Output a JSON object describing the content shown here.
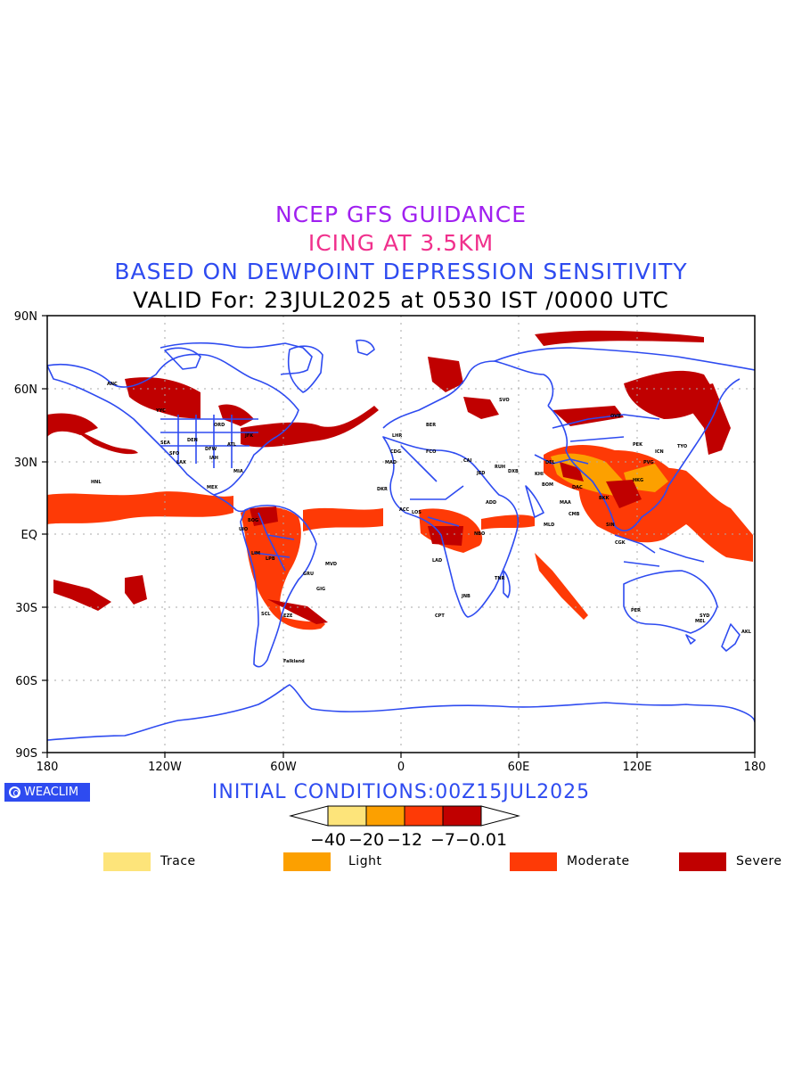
{
  "titles": {
    "line1": "NCEP GFS GUIDANCE",
    "line2": "ICING AT 3.5KM",
    "line3": "BASED ON DEWPOINT DEPRESSION SENSITIVITY",
    "line4": "VALID For: 23JUL2025 at 0530 IST /0000 UTC"
  },
  "axes": {
    "lat_labels": [
      "90N",
      "60N",
      "30N",
      "EQ",
      "30S",
      "60S",
      "90S"
    ],
    "lon_labels": [
      "180",
      "120W",
      "60W",
      "0",
      "60E",
      "120E",
      "180"
    ]
  },
  "brand": {
    "label": "WEACLIM",
    "icon": "weaclim-logo-icon"
  },
  "init_conditions": "INITIAL CONDITIONS:00Z15JUL2025",
  "colorbar": {
    "tick_labels": [
      "−40",
      "−20",
      "−12",
      "−7",
      "−0.01"
    ],
    "colors": [
      "#fde47a",
      "#fca000",
      "#fe3a06",
      "#c00000"
    ]
  },
  "legend": [
    {
      "label": "Trace",
      "color": "#fde47a"
    },
    {
      "label": "Light",
      "color": "#fca000"
    },
    {
      "label": "Moderate",
      "color": "#fe3a06"
    },
    {
      "label": "Severe",
      "color": "#c00000"
    }
  ],
  "map_colors": {
    "coast": "#2e4bf0",
    "grid": "#aaaaaa"
  },
  "stations": [
    "ANC",
    "YYC",
    "SEA",
    "SFO",
    "LAX",
    "DEN",
    "ORD",
    "DFW",
    "IAH",
    "ATL",
    "MIA",
    "JFK",
    "HNL",
    "MEX",
    "BOG",
    "UIO",
    "LIM",
    "GRU",
    "GIG",
    "SCL",
    "EZE",
    "MVD",
    "LPB",
    "Falkland",
    "LHR",
    "CDG",
    "MAD",
    "FCO",
    "BER",
    "CAI",
    "JED",
    "RUH",
    "DXB",
    "KHI",
    "DEL",
    "BOM",
    "MAA",
    "CMB",
    "DAC",
    "BKK",
    "SIN",
    "CGK",
    "HKG",
    "PVG",
    "PEK",
    "ICN",
    "TYO",
    "SVO",
    "OVB",
    "NBO",
    "JNB",
    "CPT",
    "LOS",
    "ACC",
    "DKR",
    "LAD",
    "TNR",
    "PER",
    "SYD",
    "MEL",
    "AKL",
    "ADD",
    "MLD"
  ]
}
